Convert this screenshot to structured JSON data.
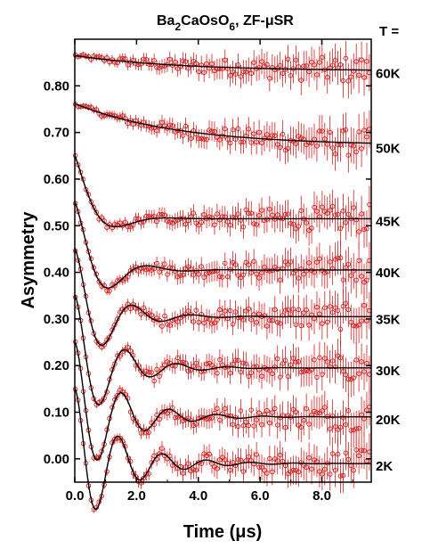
{
  "figure": {
    "title_parts": [
      "Ba",
      "2",
      "CaOsO",
      "6",
      ",  ZF-μSR"
    ],
    "temp_header": "T ="
  },
  "chart_data": {
    "type": "scatter",
    "title": "Ba2CaOsO6,  ZF-μSR",
    "xlabel": "Time (μs)",
    "ylabel": "Asymmetry",
    "xlim": [
      0,
      9.6
    ],
    "ylim": [
      -0.05,
      0.9
    ],
    "xticks": [
      0.0,
      2.0,
      4.0,
      6.0,
      8.0
    ],
    "xtick_labels": [
      "0.0",
      "2.0",
      "4.0",
      "6.0",
      "8.0"
    ],
    "yticks": [
      0.0,
      0.1,
      0.2,
      0.3,
      0.4,
      0.5,
      0.6,
      0.7,
      0.8
    ],
    "ytick_labels": [
      "0.00",
      "0.10",
      "0.20",
      "0.30",
      "0.40",
      "0.50",
      "0.60",
      "0.70",
      "0.80"
    ],
    "legend_header": "T =",
    "series_style": {
      "data": "red open circles with error bars",
      "fit": "solid black line"
    },
    "series": [
      {
        "name": "60K",
        "model": "relax",
        "a0": 0.865,
        "a_inf": 0.832,
        "lambda": 0.3
      },
      {
        "name": "50K",
        "model": "relax",
        "a0": 0.762,
        "a_inf": 0.672,
        "lambda": 0.3
      },
      {
        "name": "45K",
        "model": "oscillating",
        "a0": 0.652,
        "a_inf": 0.515,
        "freq": 0.3,
        "damping": 1.4
      },
      {
        "name": "40K",
        "model": "oscillating",
        "a0": 0.552,
        "a_inf": 0.405,
        "freq": 0.4,
        "damping": 1.15
      },
      {
        "name": "35K",
        "model": "oscillating",
        "a0": 0.452,
        "a_inf": 0.305,
        "freq": 0.52,
        "damping": 0.95
      },
      {
        "name": "30K",
        "model": "oscillating",
        "a0": 0.352,
        "a_inf": 0.195,
        "freq": 0.6,
        "damping": 0.85
      },
      {
        "name": "20K",
        "model": "oscillating",
        "a0": 0.252,
        "a_inf": 0.09,
        "freq": 0.65,
        "damping": 0.75
      },
      {
        "name": "2K",
        "model": "oscillating",
        "a0": 0.152,
        "a_inf": -0.01,
        "freq": 0.7,
        "damping": 0.72
      }
    ],
    "grid": false
  }
}
